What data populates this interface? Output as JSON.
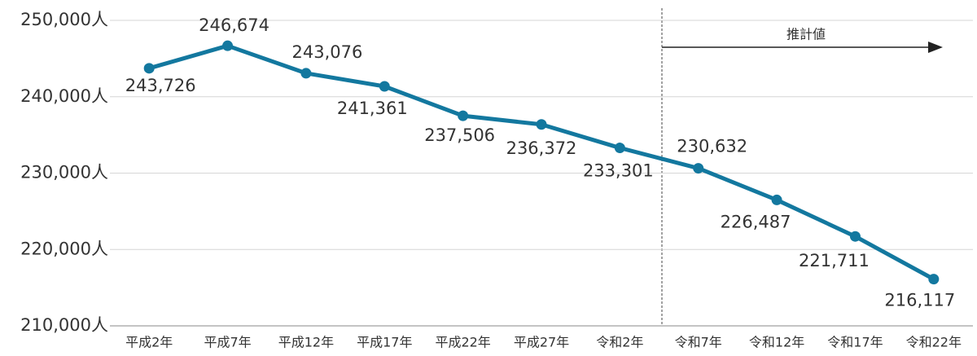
{
  "chart_data": {
    "type": "line",
    "categories": [
      "平成2年",
      "平成7年",
      "平成12年",
      "平成17年",
      "平成22年",
      "平成27年",
      "令和2年",
      "令和7年",
      "令和12年",
      "令和17年",
      "令和22年"
    ],
    "series": [
      {
        "color": "#13789f",
        "values": [
          243726,
          246674,
          243076,
          241361,
          237506,
          236372,
          233301,
          230632,
          226487,
          221711,
          216117
        ],
        "value_labels": [
          "243,726",
          "246,674",
          "243,076",
          "241,361",
          "237,506",
          "236,372",
          "233,301",
          "230,632",
          "226,487",
          "221,711",
          "216,117"
        ]
      }
    ],
    "ylim": [
      210000,
      250000
    ],
    "yticks": [
      {
        "value": 210000,
        "label": "210,000人"
      },
      {
        "value": 220000,
        "label": "220,000人"
      },
      {
        "value": 230000,
        "label": "230,000人"
      },
      {
        "value": 240000,
        "label": "240,000人"
      },
      {
        "value": 250000,
        "label": "250,000人"
      }
    ],
    "grid": true,
    "annotations": [
      "推計値"
    ]
  }
}
